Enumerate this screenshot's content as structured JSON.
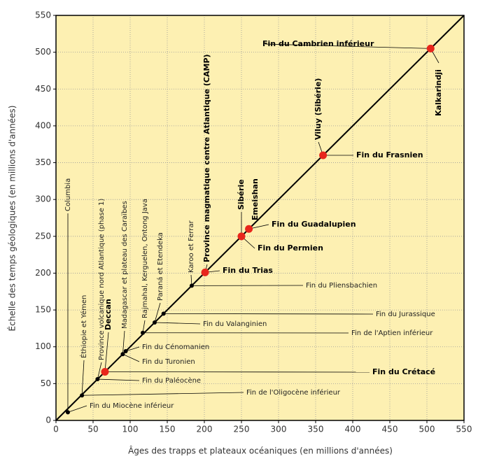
{
  "chart_data": {
    "type": "scatter",
    "xlabel": "Âges des trapps et plateaux océaniques (en millions d'années)",
    "ylabel": "Échelle des temps géologiques (en millions d'années)",
    "xlim": [
      0,
      550
    ],
    "ylim": [
      0,
      550
    ],
    "xticks": [
      0,
      50,
      100,
      150,
      200,
      250,
      300,
      350,
      400,
      450,
      500,
      550
    ],
    "yticks": [
      0,
      50,
      100,
      150,
      200,
      250,
      300,
      350,
      400,
      450,
      500,
      550
    ],
    "grid": true,
    "identity_line": true,
    "major_color": "#e8261c",
    "minor_color": "#000000",
    "points": [
      {
        "x": 16,
        "y": 11,
        "major": false,
        "province": "Columbia",
        "event": "Fin du Miocène inférieur"
      },
      {
        "x": 35,
        "y": 34,
        "major": false,
        "province": "Éthiopie et Yémen",
        "event": "Fin de l'Oligocène inférieur"
      },
      {
        "x": 56,
        "y": 56,
        "major": false,
        "province": "Province volcanique nord Atlantique (phase 1)",
        "event": "Fin du Paléocène"
      },
      {
        "x": 66,
        "y": 66,
        "major": true,
        "province": "Deccan",
        "event": "Fin du Crétacé"
      },
      {
        "x": 90,
        "y": 90,
        "major": false,
        "province": "Madagascar et plateau des Caraïbes",
        "event": "Fin du Turonien"
      },
      {
        "x": 94,
        "y": 94,
        "major": false,
        "event": "Fin du Cénomanien"
      },
      {
        "x": 117,
        "y": 119,
        "major": false,
        "province": "Rajmahal, Kerguelen, Ontong Java",
        "event": "Fin de l'Aptien inférieur"
      },
      {
        "x": 133,
        "y": 133,
        "major": false,
        "province": "Paraná et Etendeka",
        "event": "Fin du Valanginien"
      },
      {
        "x": 145,
        "y": 145,
        "major": false,
        "event": "Fin du Jurassique"
      },
      {
        "x": 183,
        "y": 183,
        "major": false,
        "province": "Karoo et Ferrar",
        "event": "Fin du Pliensbachien"
      },
      {
        "x": 201,
        "y": 201,
        "major": true,
        "province": "Province magmatique centre Atlantique (CAMP)",
        "event": "Fin du Trias"
      },
      {
        "x": 250,
        "y": 250,
        "major": true,
        "province": "Sibérie",
        "event": "Fin du Permien"
      },
      {
        "x": 260,
        "y": 260,
        "major": true,
        "province": "Emeishan",
        "event": "Fin du Guadalupien"
      },
      {
        "x": 360,
        "y": 360,
        "major": true,
        "province": "Viluy (Sibérie)",
        "event": "Fin du Frasnien"
      },
      {
        "x": 505,
        "y": 505,
        "major": true,
        "province": "Kalkarindji",
        "event": "Fin du Cambrien inférieur"
      }
    ]
  }
}
